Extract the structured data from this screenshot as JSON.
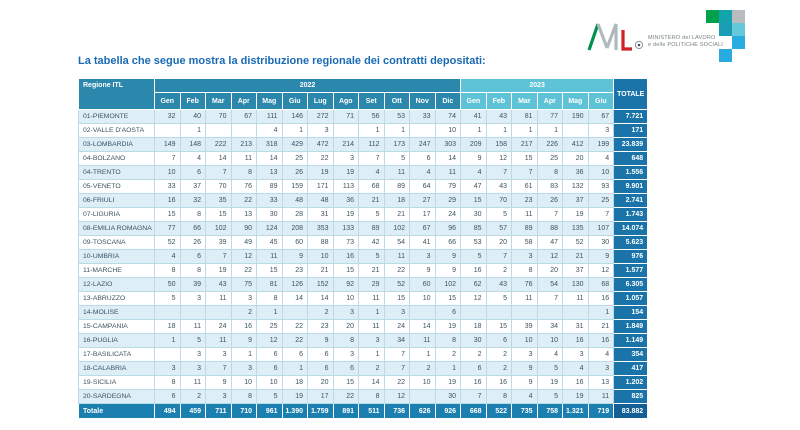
{
  "logo": {
    "monogram_m": "M",
    "monogram_l": "L",
    "ministry_line1": "MINISTERO del LAVORO",
    "ministry_line2": "e delle POLITICHE SOCIALI"
  },
  "title": "La tabella che segue mostra la distribuzione regionale dei contratti depositati:",
  "colors": {
    "header_2022": "#2b87ac",
    "header_2023": "#5fc3d7",
    "total_column": "#1b74a9",
    "footer_row": "#1b7fb0",
    "row_stripe": "#ddeef7",
    "title_blue": "#1a6ab4"
  },
  "table": {
    "region_header": "Regione ITL",
    "year_2022": "2022",
    "year_2023": "2023",
    "total_header": "TOTALE",
    "months_2022": [
      "Gen",
      "Feb",
      "Mar",
      "Apr",
      "Mag",
      "Giu",
      "Lug",
      "Ago",
      "Set",
      "Ott",
      "Nov",
      "Dic"
    ],
    "months_2023": [
      "Gen",
      "Feb",
      "Mar",
      "Apr",
      "Mag",
      "Giu"
    ],
    "rows": [
      {
        "region": "01-PIEMONTE",
        "values_2022": [
          "32",
          "40",
          "70",
          "67",
          "111",
          "146",
          "272",
          "71",
          "56",
          "53",
          "33",
          "74"
        ],
        "values_2023": [
          "41",
          "43",
          "81",
          "77",
          "190",
          "67"
        ],
        "total": "7.721"
      },
      {
        "region": "02-VALLE D'AOSTA",
        "values_2022": [
          "",
          "1",
          "",
          "",
          "4",
          "1",
          "3",
          "",
          "1",
          "1",
          "",
          "10"
        ],
        "values_2023": [
          "1",
          "1",
          "1",
          "1",
          "",
          "3"
        ],
        "total": "171"
      },
      {
        "region": "03-LOMBARDIA",
        "values_2022": [
          "149",
          "148",
          "222",
          "213",
          "318",
          "429",
          "472",
          "214",
          "112",
          "173",
          "247",
          "303"
        ],
        "values_2023": [
          "209",
          "158",
          "217",
          "226",
          "412",
          "199"
        ],
        "total": "23.839"
      },
      {
        "region": "04-BOLZANO",
        "values_2022": [
          "7",
          "4",
          "14",
          "11",
          "14",
          "25",
          "22",
          "3",
          "7",
          "5",
          "6",
          "14"
        ],
        "values_2023": [
          "9",
          "12",
          "15",
          "25",
          "20",
          "4"
        ],
        "total": "648"
      },
      {
        "region": "04-TRENTO",
        "values_2022": [
          "10",
          "6",
          "7",
          "8",
          "13",
          "26",
          "19",
          "19",
          "4",
          "11",
          "4",
          "11"
        ],
        "values_2023": [
          "4",
          "7",
          "7",
          "8",
          "36",
          "10"
        ],
        "total": "1.556"
      },
      {
        "region": "05-VENETO",
        "values_2022": [
          "33",
          "37",
          "70",
          "76",
          "89",
          "159",
          "171",
          "113",
          "68",
          "89",
          "64",
          "79"
        ],
        "values_2023": [
          "47",
          "43",
          "61",
          "83",
          "132",
          "93"
        ],
        "total": "9.901"
      },
      {
        "region": "06-FRIULI",
        "values_2022": [
          "16",
          "32",
          "35",
          "22",
          "33",
          "48",
          "48",
          "36",
          "21",
          "18",
          "27",
          "29"
        ],
        "values_2023": [
          "15",
          "70",
          "23",
          "26",
          "37",
          "25"
        ],
        "total": "2.741"
      },
      {
        "region": "07-LIGURIA",
        "values_2022": [
          "15",
          "8",
          "15",
          "13",
          "30",
          "28",
          "31",
          "19",
          "5",
          "21",
          "17",
          "24"
        ],
        "values_2023": [
          "30",
          "5",
          "11",
          "7",
          "19",
          "7"
        ],
        "total": "1.743"
      },
      {
        "region": "08-EMILIA ROMAGNA",
        "values_2022": [
          "77",
          "66",
          "102",
          "90",
          "124",
          "208",
          "353",
          "133",
          "89",
          "102",
          "67",
          "96"
        ],
        "values_2023": [
          "85",
          "57",
          "89",
          "88",
          "135",
          "107"
        ],
        "total": "14.074"
      },
      {
        "region": "09-TOSCANA",
        "values_2022": [
          "52",
          "26",
          "39",
          "49",
          "45",
          "60",
          "88",
          "73",
          "42",
          "54",
          "41",
          "66"
        ],
        "values_2023": [
          "53",
          "20",
          "58",
          "47",
          "52",
          "30"
        ],
        "total": "5.623"
      },
      {
        "region": "10-UMBRIA",
        "values_2022": [
          "4",
          "6",
          "7",
          "12",
          "11",
          "9",
          "10",
          "16",
          "5",
          "11",
          "3",
          "9"
        ],
        "values_2023": [
          "5",
          "7",
          "3",
          "12",
          "21",
          "9"
        ],
        "total": "976"
      },
      {
        "region": "11-MARCHE",
        "values_2022": [
          "8",
          "8",
          "19",
          "22",
          "15",
          "23",
          "21",
          "15",
          "21",
          "22",
          "9",
          "9"
        ],
        "values_2023": [
          "16",
          "2",
          "8",
          "20",
          "37",
          "12"
        ],
        "total": "1.577"
      },
      {
        "region": "12-LAZIO",
        "values_2022": [
          "50",
          "39",
          "43",
          "75",
          "81",
          "126",
          "152",
          "92",
          "29",
          "52",
          "60",
          "102"
        ],
        "values_2023": [
          "62",
          "43",
          "76",
          "54",
          "130",
          "68"
        ],
        "total": "6.305"
      },
      {
        "region": "13-ABRUZZO",
        "values_2022": [
          "5",
          "3",
          "11",
          "3",
          "8",
          "14",
          "14",
          "10",
          "11",
          "15",
          "10",
          "15"
        ],
        "values_2023": [
          "12",
          "5",
          "11",
          "7",
          "11",
          "16"
        ],
        "total": "1.057"
      },
      {
        "region": "14-MOLISE",
        "values_2022": [
          "",
          "",
          "",
          "2",
          "1",
          "",
          "2",
          "3",
          "1",
          "3",
          "",
          "6"
        ],
        "values_2023": [
          "",
          "",
          "",
          "",
          "",
          "1"
        ],
        "total": "154"
      },
      {
        "region": "15-CAMPANIA",
        "values_2022": [
          "18",
          "11",
          "24",
          "16",
          "25",
          "22",
          "23",
          "20",
          "11",
          "24",
          "14",
          "19"
        ],
        "values_2023": [
          "18",
          "15",
          "39",
          "34",
          "31",
          "21"
        ],
        "total": "1.849"
      },
      {
        "region": "16-PUGLIA",
        "values_2022": [
          "1",
          "5",
          "11",
          "9",
          "12",
          "22",
          "9",
          "8",
          "3",
          "34",
          "11",
          "8"
        ],
        "values_2023": [
          "30",
          "6",
          "10",
          "10",
          "16",
          "16"
        ],
        "total": "1.149"
      },
      {
        "region": "17-BASILICATA",
        "values_2022": [
          "",
          "3",
          "3",
          "1",
          "6",
          "6",
          "6",
          "3",
          "1",
          "7",
          "1",
          "2"
        ],
        "values_2023": [
          "2",
          "2",
          "3",
          "4",
          "3",
          "4"
        ],
        "total": "354"
      },
      {
        "region": "18-CALABRIA",
        "values_2022": [
          "3",
          "3",
          "7",
          "3",
          "6",
          "1",
          "6",
          "6",
          "2",
          "7",
          "2",
          "1"
        ],
        "values_2023": [
          "6",
          "2",
          "9",
          "5",
          "4",
          "3"
        ],
        "total": "417"
      },
      {
        "region": "19-SICILIA",
        "values_2022": [
          "8",
          "11",
          "9",
          "10",
          "10",
          "18",
          "20",
          "15",
          "14",
          "22",
          "10",
          "19"
        ],
        "values_2023": [
          "16",
          "16",
          "9",
          "19",
          "16",
          "13"
        ],
        "total": "1.202"
      },
      {
        "region": "20-SARDEGNA",
        "values_2022": [
          "6",
          "2",
          "3",
          "8",
          "5",
          "19",
          "17",
          "22",
          "8",
          "12",
          "",
          "30"
        ],
        "values_2023": [
          "7",
          "8",
          "4",
          "5",
          "19",
          "11"
        ],
        "total": "825"
      }
    ],
    "footer": {
      "label": "Totale",
      "values_2022": [
        "494",
        "459",
        "711",
        "710",
        "961",
        "1.390",
        "1.759",
        "891",
        "511",
        "736",
        "626",
        "926"
      ],
      "values_2023": [
        "668",
        "522",
        "735",
        "758",
        "1.321",
        "719"
      ],
      "total": "83.882"
    }
  }
}
